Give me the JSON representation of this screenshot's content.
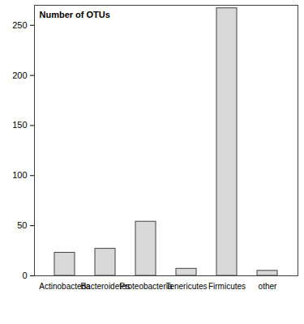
{
  "chart_data": {
    "type": "bar",
    "title": "Number of OTUs",
    "categories": [
      "Actinobacteria",
      "Bacteroidetes",
      "Proteobacteria",
      "Tenericutes",
      "Firmicutes",
      "other"
    ],
    "values": [
      23,
      27,
      54,
      7,
      267,
      5
    ],
    "color": "#d9d9d9",
    "ylim": [
      0,
      270
    ],
    "yticks": [
      0,
      50,
      100,
      150,
      200,
      250
    ],
    "grid": false
  }
}
